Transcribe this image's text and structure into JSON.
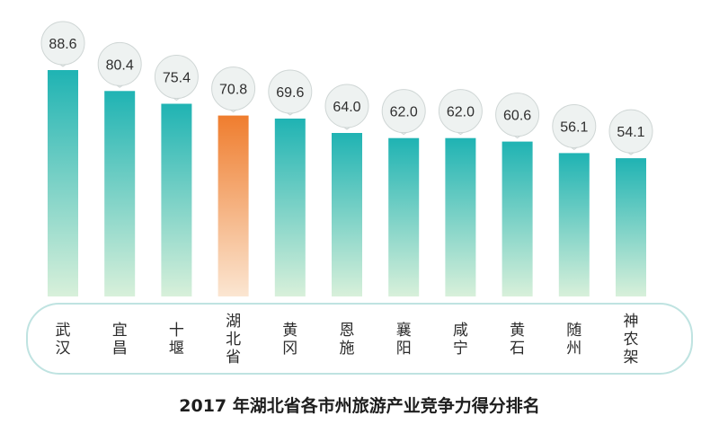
{
  "chart_data": {
    "type": "bar",
    "title": "2017 年湖北省各市州旅游产业竞争力得分排名",
    "categories": [
      "武汉",
      "宜昌",
      "十堰",
      "湖北省",
      "黄冈",
      "恩施",
      "襄阳",
      "咸宁",
      "黄石",
      "随州",
      "神农架"
    ],
    "values": [
      88.6,
      80.4,
      75.4,
      70.8,
      69.6,
      64.0,
      62.0,
      62.0,
      60.6,
      56.1,
      54.1
    ],
    "value_labels": [
      "88.6",
      "80.4",
      "75.4",
      "70.8",
      "69.6",
      "64.0",
      "62.0",
      "62.0",
      "60.6",
      "56.1",
      "54.1"
    ],
    "highlight_index": 3,
    "ylim": [
      0,
      100
    ],
    "grid": false,
    "legend": "none",
    "xlabel": "",
    "ylabel": ""
  },
  "colors": {
    "bar_top": "#1fb3b3",
    "bar_bottom": "#d8f0da",
    "highlight_top": "#ef7d2e",
    "highlight_bottom": "#fbe6d2",
    "highlight_text": "#ee7a2a",
    "bubble_fill": "#eef2f1",
    "bubble_stroke": "#cfd6d5",
    "label_border": "#bfe3e1",
    "title": "#1e1e1e"
  }
}
